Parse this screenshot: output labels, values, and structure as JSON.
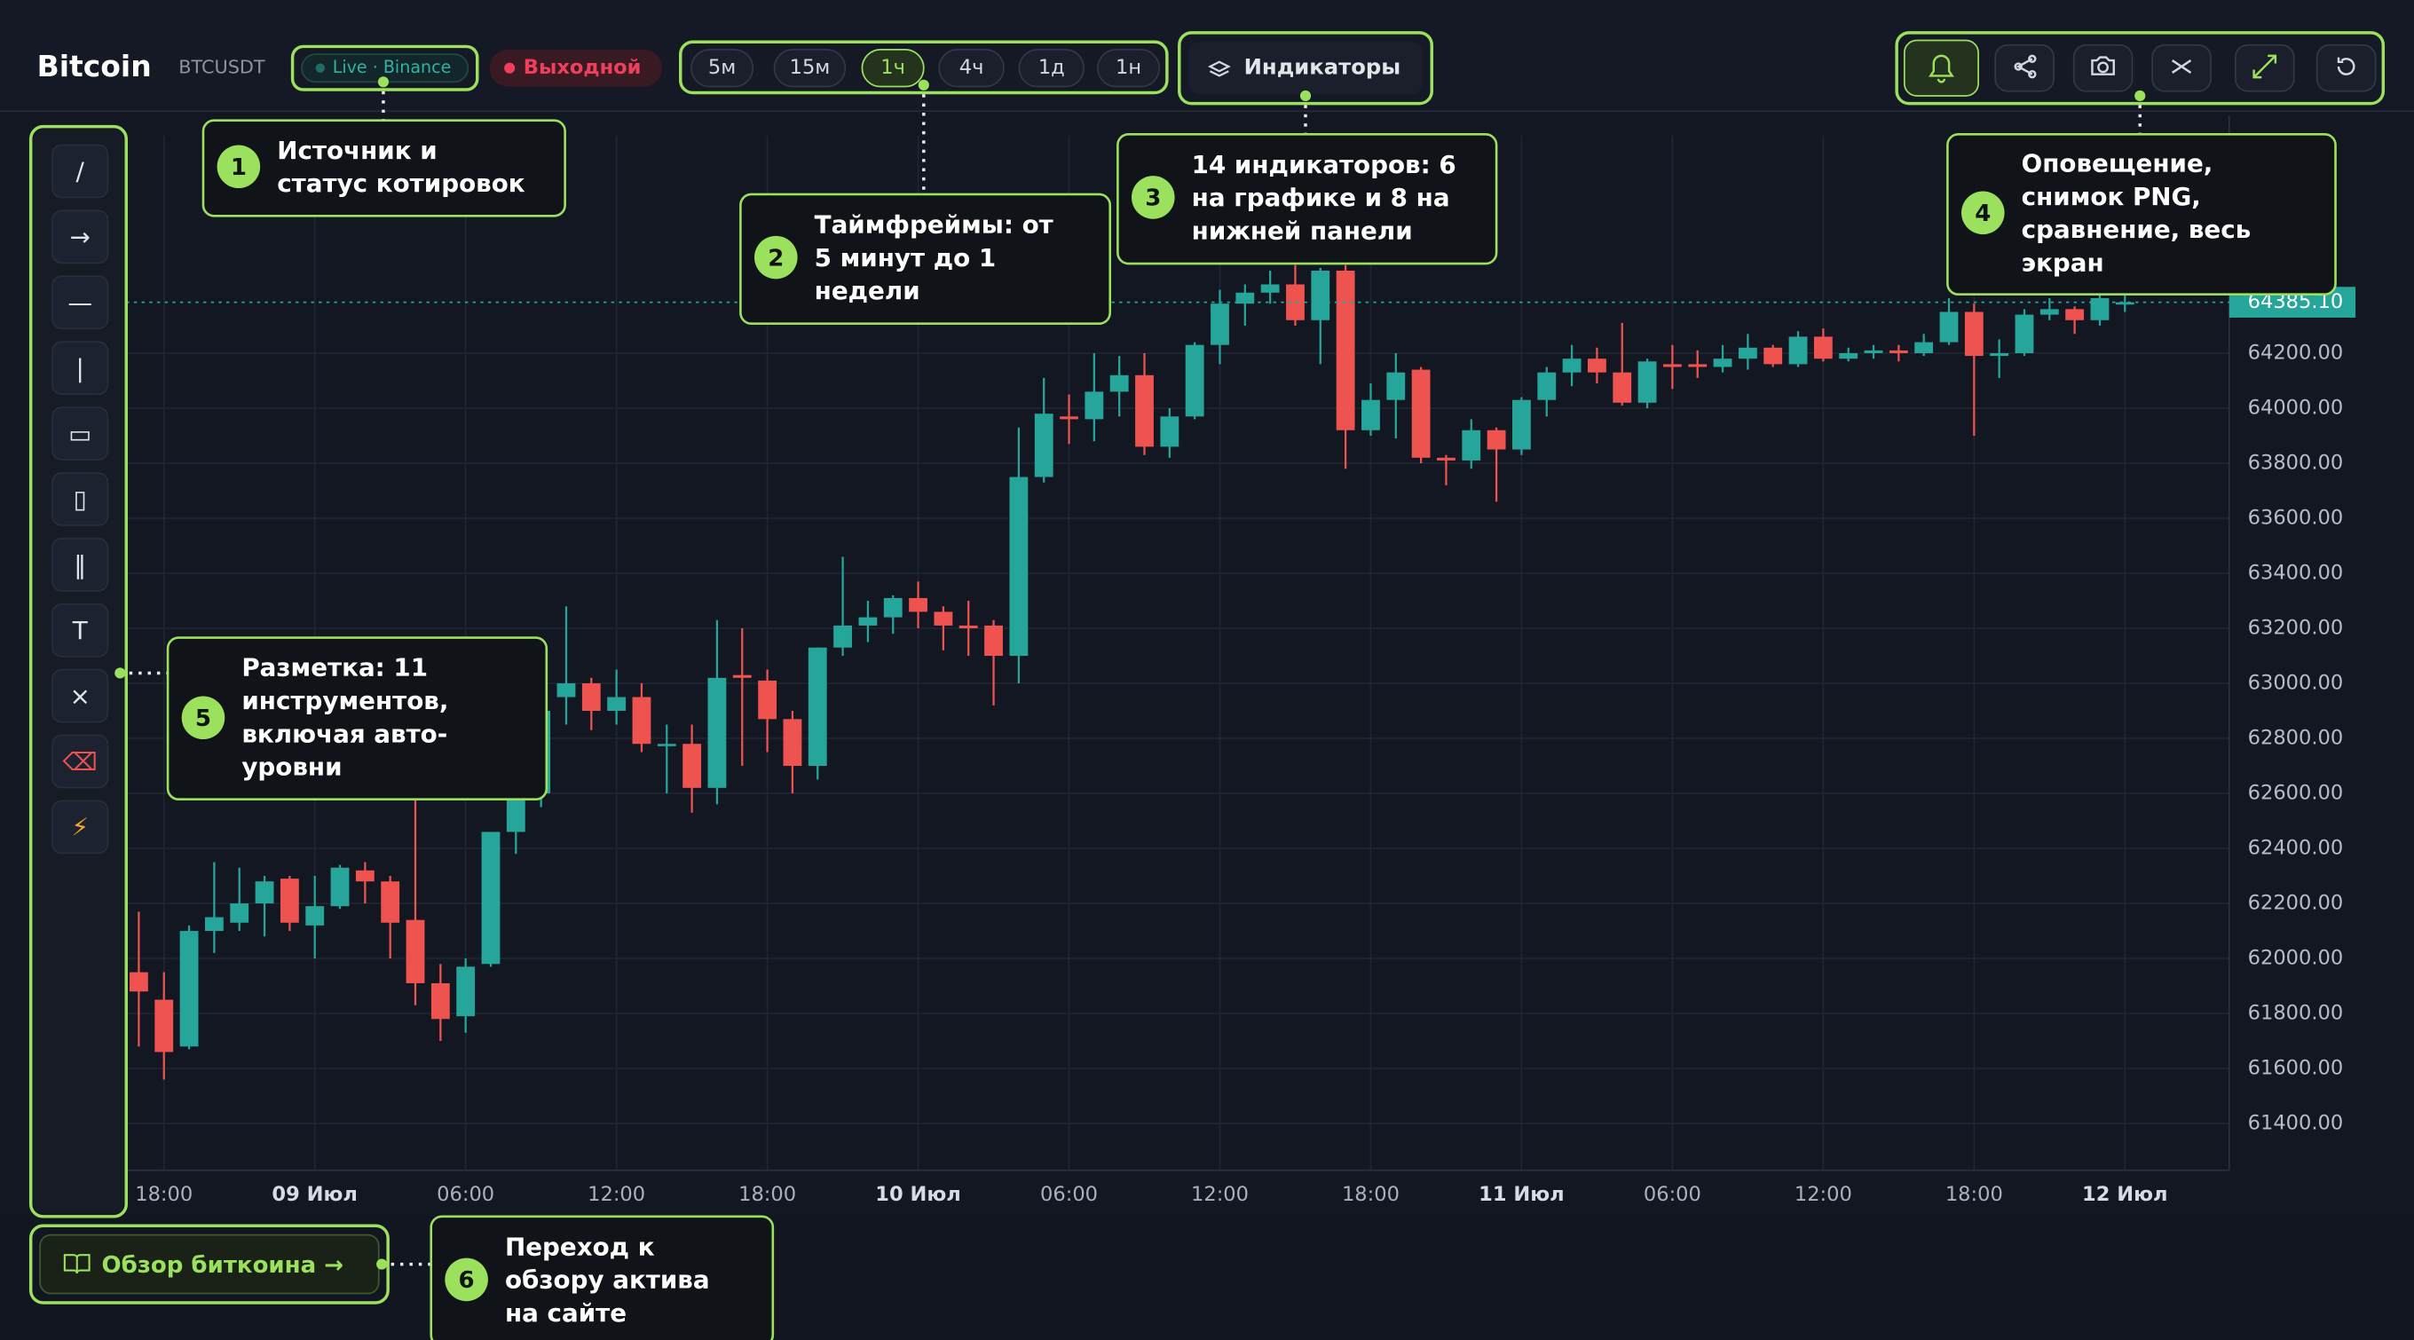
{
  "header": {
    "title": "Bitcoin",
    "symbol": "BTCUSDT",
    "source": "Live · Binance",
    "status": "Выходной"
  },
  "timeframes": [
    {
      "label": "5м",
      "active": false
    },
    {
      "label": "15м",
      "active": false
    },
    {
      "label": "1ч",
      "active": true
    },
    {
      "label": "4ч",
      "active": false
    },
    {
      "label": "1д",
      "active": false
    },
    {
      "label": "1н",
      "active": false
    }
  ],
  "indicators_button": "Индикаторы",
  "drawing_tools": [
    "/",
    "→",
    "—",
    "|",
    "▭",
    "▯",
    "‖",
    "T",
    "×",
    "⌫",
    "⚡"
  ],
  "review_button": "Обзор биткоина →",
  "annotations": [
    {
      "number": 1,
      "lines": [
        "Источник и",
        "статус котировок"
      ]
    },
    {
      "number": 2,
      "lines": [
        "Таймфреймы: от",
        "5 минут до 1",
        "недели"
      ]
    },
    {
      "number": 3,
      "lines": [
        "14 индикаторов: 6",
        "на графике и 8 на",
        "нижней панели"
      ]
    },
    {
      "number": 4,
      "lines": [
        "Оповещение,",
        "снимок PNG,",
        "сравнение, весь",
        "экран"
      ]
    },
    {
      "number": 5,
      "lines": [
        "Разметка: 11",
        "инструментов,",
        "включая авто-",
        "уровни"
      ]
    },
    {
      "number": 6,
      "lines": [
        "Переход к",
        "обзору актива",
        "на сайте"
      ]
    }
  ],
  "chart_data": {
    "type": "candlestick",
    "up_color": "#26a69a",
    "down_color": "#ef5350",
    "grid": true,
    "categories": [
      null,
      "18:00",
      null,
      null,
      null,
      null,
      null,
      "09 Июл",
      null,
      null,
      null,
      null,
      null,
      "06:00",
      null,
      null,
      null,
      null,
      null,
      "12:00",
      null,
      null,
      null,
      null,
      null,
      "18:00",
      null,
      null,
      null,
      null,
      null,
      "10 Июл",
      null,
      null,
      null,
      null,
      null,
      "06:00",
      null,
      null,
      null,
      null,
      null,
      "12:00",
      null,
      null,
      null,
      null,
      null,
      "18:00",
      null,
      null,
      null,
      null,
      null,
      "11 Июл",
      null,
      null,
      null,
      null,
      null,
      "06:00",
      null,
      null,
      null,
      null,
      null,
      "12:00",
      null,
      null,
      null,
      null,
      null,
      "18:00",
      null,
      null,
      null,
      null,
      null,
      "12 Июл"
    ],
    "open": [
      61950,
      61850,
      61680,
      62100,
      62130,
      62200,
      62290,
      62120,
      62190,
      62320,
      62280,
      62140,
      61910,
      61790,
      61980,
      62460,
      62600,
      62950,
      63000,
      62900,
      62950,
      62780,
      62780,
      62620,
      63030,
      63010,
      62870,
      62700,
      63130,
      63210,
      63240,
      63310,
      63260,
      63210,
      63210,
      63100,
      63750,
      63970,
      63960,
      64060,
      64120,
      63860,
      63970,
      64230,
      64380,
      64420,
      64450,
      64320,
      64500,
      63920,
      64030,
      64140,
      63820,
      63810,
      63920,
      63850,
      64030,
      64130,
      64180,
      64130,
      64020,
      64160,
      64160,
      64150,
      64180,
      64220,
      64160,
      64260,
      64180,
      64200,
      64210,
      64200,
      64240,
      64350,
      64190,
      64200,
      64340,
      64360,
      64320,
      64380
    ],
    "high": [
      62170,
      61950,
      62120,
      62350,
      62330,
      62300,
      62300,
      62300,
      62340,
      62350,
      62300,
      62600,
      61980,
      62000,
      62460,
      62850,
      62950,
      63280,
      63020,
      63050,
      63000,
      62850,
      62850,
      63230,
      63200,
      63050,
      62900,
      63130,
      63460,
      63300,
      63320,
      63370,
      63280,
      63300,
      63230,
      63930,
      64110,
      64050,
      64200,
      64190,
      64200,
      64000,
      64240,
      64430,
      64450,
      64500,
      64520,
      64510,
      64520,
      64090,
      64200,
      64150,
      63830,
      63960,
      63930,
      64040,
      64150,
      64230,
      64220,
      64310,
      64180,
      64230,
      64210,
      64230,
      64270,
      64230,
      64280,
      64290,
      64220,
      64230,
      64230,
      64270,
      64400,
      64380,
      64250,
      64360,
      64400,
      64370,
      64420,
      64420
    ],
    "low": [
      61680,
      61560,
      61670,
      62020,
      62100,
      62080,
      62100,
      62000,
      62180,
      62200,
      62000,
      61830,
      61700,
      61730,
      61970,
      62380,
      62550,
      62850,
      62830,
      62850,
      62750,
      62600,
      62530,
      62560,
      62700,
      62750,
      62600,
      62650,
      63100,
      63150,
      63180,
      63200,
      63120,
      63100,
      62920,
      63000,
      63730,
      63870,
      63880,
      63970,
      63830,
      63820,
      63960,
      64160,
      64300,
      64380,
      64300,
      64160,
      63780,
      63900,
      63890,
      63800,
      63720,
      63780,
      63660,
      63830,
      63970,
      64080,
      64090,
      64010,
      64000,
      64070,
      64110,
      64130,
      64140,
      64150,
      64150,
      64170,
      64170,
      64180,
      64170,
      64190,
      64230,
      63900,
      64110,
      64190,
      64320,
      64270,
      64300,
      64350
    ],
    "close": [
      61880,
      61660,
      62100,
      62150,
      62200,
      62280,
      62130,
      62190,
      62330,
      62280,
      62130,
      61910,
      61780,
      61970,
      62460,
      62600,
      62900,
      63000,
      62900,
      62950,
      62780,
      62780,
      62620,
      63020,
      63020,
      62870,
      62700,
      63130,
      63210,
      63240,
      63310,
      63260,
      63210,
      63200,
      63100,
      63750,
      63980,
      63960,
      64060,
      64120,
      63860,
      63970,
      64230,
      64380,
      64420,
      64450,
      64320,
      64500,
      63920,
      64030,
      64130,
      63820,
      63810,
      63920,
      63850,
      64030,
      64130,
      64180,
      64130,
      64020,
      64170,
      64150,
      64150,
      64180,
      64220,
      64160,
      64260,
      64180,
      64200,
      64210,
      64200,
      64240,
      64350,
      64190,
      64200,
      64340,
      64360,
      64320,
      64400,
      64385.1
    ],
    "ylim": [
      61230,
      64990
    ],
    "yticks": [
      {
        "value": 61400,
        "label": "61400.00"
      },
      {
        "value": 61600,
        "label": "61600.00"
      },
      {
        "value": 61800,
        "label": "61800.00"
      },
      {
        "value": 62000,
        "label": "62000.00"
      },
      {
        "value": 62200,
        "label": "62200.00"
      },
      {
        "value": 62400,
        "label": "62400.00"
      },
      {
        "value": 62600,
        "label": "62600.00"
      },
      {
        "value": 62800,
        "label": "62800.00"
      },
      {
        "value": 63000,
        "label": "63000.00"
      },
      {
        "value": 63200,
        "label": "63200.00"
      },
      {
        "value": 63400,
        "label": "63400.00"
      },
      {
        "value": 63600,
        "label": "63600.00"
      },
      {
        "value": 63800,
        "label": "63800.00"
      },
      {
        "value": 64000,
        "label": "64000.00"
      },
      {
        "value": 64200,
        "label": "64200.00"
      }
    ],
    "last_price": {
      "value": 64385.1,
      "label": "64385.10"
    }
  }
}
